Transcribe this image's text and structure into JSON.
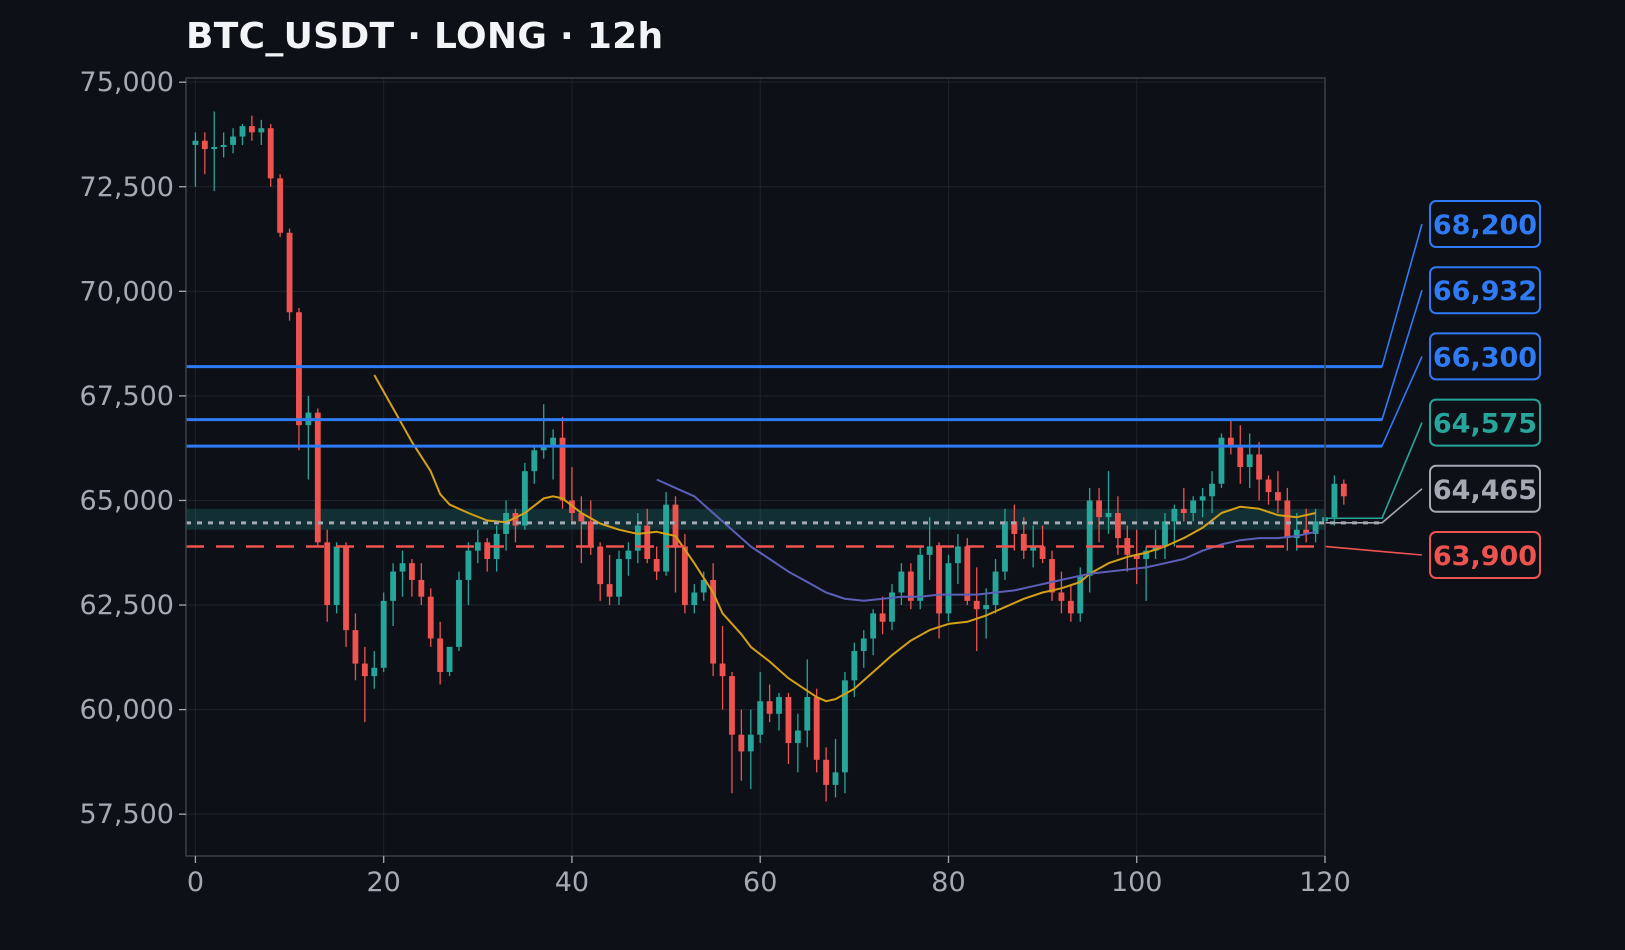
{
  "chart_data": {
    "type": "candlestick",
    "title": "BTC_USDT · LONG · 12h",
    "xlabel": "",
    "ylabel": "",
    "xlim": [
      -1,
      120
    ],
    "ylim": [
      56500,
      75100
    ],
    "x_ticks": [
      0,
      20,
      40,
      60,
      80,
      100,
      120
    ],
    "y_ticks": [
      57500,
      60000,
      62500,
      65000,
      67500,
      70000,
      72500,
      75000
    ],
    "grid": true,
    "colors": {
      "up": "#26a69a",
      "down": "#ef5350",
      "ma_fast": "#d4a017",
      "ma_slow": "#5b5fb8",
      "background": "#0d1017",
      "frame": "#3a3f48"
    },
    "entry_zone": [
      64300,
      64800
    ],
    "levels": [
      {
        "label": "68,200",
        "value": 68200,
        "color": "#2f7bf5",
        "style": "solid"
      },
      {
        "label": "66,932",
        "value": 66932,
        "color": "#2f7bf5",
        "style": "solid"
      },
      {
        "label": "66,300",
        "value": 66300,
        "color": "#2f7bf5",
        "style": "solid"
      },
      {
        "label": "64,575",
        "value": 64575,
        "color": "#26a69a",
        "style": "zone"
      },
      {
        "label": "64,465",
        "value": 64465,
        "color": "#a4a9b3",
        "style": "dotted"
      },
      {
        "label": "63,900",
        "value": 63900,
        "color": "#ef5350",
        "style": "dashed"
      }
    ],
    "ohlc_keys": [
      "open",
      "high",
      "low",
      "close"
    ],
    "candles": [
      [
        73500,
        73800,
        72500,
        73600
      ],
      [
        73600,
        73800,
        72800,
        73400
      ],
      [
        73400,
        74300,
        72400,
        73450
      ],
      [
        73450,
        73800,
        73200,
        73500
      ],
      [
        73500,
        73900,
        73300,
        73700
      ],
      [
        73700,
        74000,
        73500,
        73950
      ],
      [
        73950,
        74200,
        73600,
        73800
      ],
      [
        73800,
        74100,
        73500,
        73900
      ],
      [
        73900,
        74000,
        72500,
        72700
      ],
      [
        72700,
        72800,
        71300,
        71400
      ],
      [
        71400,
        71500,
        69300,
        69500
      ],
      [
        69500,
        69600,
        66200,
        66800
      ],
      [
        66800,
        67500,
        65500,
        67100
      ],
      [
        67100,
        67200,
        63900,
        64000
      ],
      [
        64000,
        64300,
        62100,
        62500
      ],
      [
        62500,
        64000,
        62300,
        63900
      ],
      [
        63900,
        64000,
        61500,
        61900
      ],
      [
        61900,
        62300,
        60700,
        61100
      ],
      [
        61100,
        61500,
        59700,
        60800
      ],
      [
        60800,
        61400,
        60500,
        61000
      ],
      [
        61000,
        62800,
        60900,
        62600
      ],
      [
        62600,
        63500,
        62000,
        63300
      ],
      [
        63300,
        63800,
        62700,
        63500
      ],
      [
        63500,
        63600,
        62700,
        63100
      ],
      [
        63100,
        63500,
        62500,
        62700
      ],
      [
        62700,
        62900,
        61500,
        61700
      ],
      [
        61700,
        62100,
        60600,
        60900
      ],
      [
        60900,
        61400,
        60800,
        61500
      ],
      [
        61500,
        63300,
        61400,
        63100
      ],
      [
        63100,
        64000,
        62500,
        63800
      ],
      [
        63800,
        64300,
        63500,
        64000
      ],
      [
        64000,
        64100,
        63300,
        63600
      ],
      [
        63600,
        64400,
        63300,
        64200
      ],
      [
        64200,
        65000,
        63800,
        64700
      ],
      [
        64700,
        64800,
        64000,
        64400
      ],
      [
        64400,
        65900,
        64300,
        65700
      ],
      [
        65700,
        66300,
        65400,
        66200
      ],
      [
        66200,
        67300,
        66000,
        66300
      ],
      [
        66300,
        66700,
        65500,
        66500
      ],
      [
        66500,
        67000,
        64800,
        65000
      ],
      [
        65000,
        65800,
        64500,
        64700
      ],
      [
        64700,
        65100,
        63500,
        64500
      ],
      [
        64500,
        65000,
        63700,
        63900
      ],
      [
        63900,
        64000,
        62600,
        63000
      ],
      [
        63000,
        63700,
        62500,
        62700
      ],
      [
        62700,
        63800,
        62500,
        63600
      ],
      [
        63600,
        64000,
        63200,
        63800
      ],
      [
        63800,
        64700,
        63500,
        64400
      ],
      [
        64400,
        64800,
        63500,
        63600
      ],
      [
        63600,
        63900,
        63100,
        63300
      ],
      [
        63300,
        65200,
        63200,
        64900
      ],
      [
        64900,
        65100,
        62800,
        63900
      ],
      [
        63900,
        64200,
        62300,
        62500
      ],
      [
        62500,
        63000,
        62300,
        62800
      ],
      [
        62800,
        63300,
        62600,
        63100
      ],
      [
        63100,
        63500,
        60800,
        61100
      ],
      [
        61100,
        62000,
        60000,
        60800
      ],
      [
        60800,
        60900,
        58000,
        59400
      ],
      [
        59400,
        60000,
        58300,
        59000
      ],
      [
        59000,
        60000,
        58100,
        59400
      ],
      [
        59400,
        60900,
        59200,
        60200
      ],
      [
        60200,
        60600,
        59700,
        59900
      ],
      [
        59900,
        60400,
        59500,
        60300
      ],
      [
        60300,
        60400,
        58700,
        59200
      ],
      [
        59200,
        59900,
        58500,
        59500
      ],
      [
        59500,
        61200,
        59100,
        60300
      ],
      [
        60300,
        60500,
        58500,
        58800
      ],
      [
        58800,
        59100,
        57800,
        58200
      ],
      [
        58200,
        59300,
        57900,
        58500
      ],
      [
        58500,
        60900,
        58000,
        60700
      ],
      [
        60700,
        61600,
        60300,
        61400
      ],
      [
        61400,
        61900,
        61000,
        61700
      ],
      [
        61700,
        62400,
        61300,
        62300
      ],
      [
        62300,
        62700,
        61800,
        62100
      ],
      [
        62100,
        63000,
        61900,
        62800
      ],
      [
        62800,
        63500,
        62500,
        63300
      ],
      [
        63300,
        63500,
        62400,
        62600
      ],
      [
        62600,
        63900,
        62400,
        63700
      ],
      [
        63700,
        64600,
        63100,
        63900
      ],
      [
        63900,
        64000,
        61700,
        62300
      ],
      [
        62300,
        63700,
        62100,
        63500
      ],
      [
        63500,
        64200,
        63000,
        63900
      ],
      [
        63900,
        64100,
        62500,
        62600
      ],
      [
        62600,
        63400,
        61400,
        62400
      ],
      [
        62400,
        62900,
        61700,
        62500
      ],
      [
        62500,
        63600,
        62300,
        63300
      ],
      [
        63300,
        64800,
        63100,
        64500
      ],
      [
        64500,
        64900,
        63800,
        64200
      ],
      [
        64200,
        64600,
        63600,
        63800
      ],
      [
        63800,
        64400,
        63400,
        63900
      ],
      [
        63900,
        64400,
        63500,
        63600
      ],
      [
        63600,
        63800,
        62600,
        62800
      ],
      [
        62800,
        63300,
        62300,
        62600
      ],
      [
        62600,
        63000,
        62100,
        62300
      ],
      [
        62300,
        63400,
        62100,
        63200
      ],
      [
        63200,
        65300,
        62800,
        65000
      ],
      [
        65000,
        65300,
        64000,
        64600
      ],
      [
        64600,
        65700,
        64200,
        64700
      ],
      [
        64700,
        65100,
        63700,
        64100
      ],
      [
        64100,
        64400,
        63300,
        63700
      ],
      [
        63700,
        64300,
        63000,
        63600
      ],
      [
        63600,
        63900,
        62600,
        63800
      ],
      [
        63800,
        64300,
        63600,
        63900
      ],
      [
        63900,
        64700,
        63600,
        64500
      ],
      [
        64500,
        64900,
        63900,
        64800
      ],
      [
        64800,
        65300,
        64500,
        64700
      ],
      [
        64700,
        65100,
        64500,
        65000
      ],
      [
        65000,
        65300,
        64600,
        65100
      ],
      [
        65100,
        65700,
        64700,
        65400
      ],
      [
        65400,
        66600,
        65300,
        66500
      ],
      [
        66500,
        66900,
        66100,
        66300
      ],
      [
        66300,
        66800,
        65400,
        65800
      ],
      [
        65800,
        66600,
        65300,
        66100
      ],
      [
        66100,
        66400,
        65000,
        65500
      ],
      [
        65500,
        65600,
        64900,
        65200
      ],
      [
        65200,
        65700,
        64700,
        65000
      ],
      [
        65000,
        65300,
        63800,
        64100
      ],
      [
        64100,
        64700,
        63800,
        64300
      ],
      [
        64300,
        64800,
        64000,
        64200
      ],
      [
        64200,
        64800,
        64000,
        64500
      ],
      [
        64500,
        64700,
        64300,
        64600
      ],
      [
        64600,
        65600,
        64400,
        65400
      ],
      [
        65400,
        65500,
        64900,
        65100
      ]
    ],
    "series": [
      {
        "type": "line",
        "color": "#d4a017",
        "points": [
          [
            19,
            68000
          ],
          [
            21,
            67200
          ],
          [
            23,
            66400
          ],
          [
            25,
            65700
          ],
          [
            26,
            65150
          ],
          [
            27,
            64900
          ],
          [
            29,
            64700
          ],
          [
            31,
            64520
          ],
          [
            33,
            64480
          ],
          [
            35,
            64700
          ],
          [
            37,
            65050
          ],
          [
            38,
            65100
          ],
          [
            39,
            65050
          ],
          [
            41,
            64700
          ],
          [
            43,
            64450
          ],
          [
            45,
            64300
          ],
          [
            47,
            64200
          ],
          [
            49,
            64250
          ],
          [
            51,
            64150
          ],
          [
            53,
            63500
          ],
          [
            55,
            62800
          ],
          [
            56,
            62300
          ],
          [
            58,
            61800
          ],
          [
            59,
            61500
          ],
          [
            61,
            61150
          ],
          [
            63,
            60750
          ],
          [
            65,
            60450
          ],
          [
            66,
            60300
          ],
          [
            67,
            60200
          ],
          [
            68,
            60250
          ],
          [
            70,
            60500
          ],
          [
            72,
            60900
          ],
          [
            74,
            61300
          ],
          [
            76,
            61650
          ],
          [
            78,
            61900
          ],
          [
            80,
            62050
          ],
          [
            82,
            62100
          ],
          [
            84,
            62250
          ],
          [
            86,
            62450
          ],
          [
            88,
            62650
          ],
          [
            90,
            62800
          ],
          [
            92,
            62900
          ],
          [
            94,
            63050
          ],
          [
            95,
            63250
          ],
          [
            97,
            63500
          ],
          [
            99,
            63650
          ],
          [
            101,
            63750
          ],
          [
            103,
            63900
          ],
          [
            105,
            64100
          ],
          [
            107,
            64350
          ],
          [
            109,
            64700
          ],
          [
            111,
            64850
          ],
          [
            113,
            64800
          ],
          [
            115,
            64650
          ],
          [
            117,
            64600
          ],
          [
            119,
            64700
          ]
        ]
      },
      {
        "type": "line",
        "color": "#5b5fb8",
        "points": [
          [
            49,
            65500
          ],
          [
            51,
            65300
          ],
          [
            53,
            65100
          ],
          [
            55,
            64700
          ],
          [
            57,
            64300
          ],
          [
            59,
            63900
          ],
          [
            61,
            63600
          ],
          [
            63,
            63300
          ],
          [
            65,
            63050
          ],
          [
            67,
            62800
          ],
          [
            69,
            62650
          ],
          [
            71,
            62600
          ],
          [
            73,
            62650
          ],
          [
            75,
            62700
          ],
          [
            77,
            62700
          ],
          [
            79,
            62750
          ],
          [
            81,
            62750
          ],
          [
            83,
            62750
          ],
          [
            85,
            62800
          ],
          [
            87,
            62850
          ],
          [
            89,
            62950
          ],
          [
            91,
            63050
          ],
          [
            93,
            63150
          ],
          [
            95,
            63250
          ],
          [
            97,
            63300
          ],
          [
            99,
            63350
          ],
          [
            101,
            63400
          ],
          [
            103,
            63500
          ],
          [
            105,
            63600
          ],
          [
            107,
            63800
          ],
          [
            109,
            63950
          ],
          [
            111,
            64050
          ],
          [
            113,
            64100
          ],
          [
            115,
            64100
          ],
          [
            117,
            64150
          ],
          [
            119,
            64250
          ]
        ]
      }
    ]
  }
}
